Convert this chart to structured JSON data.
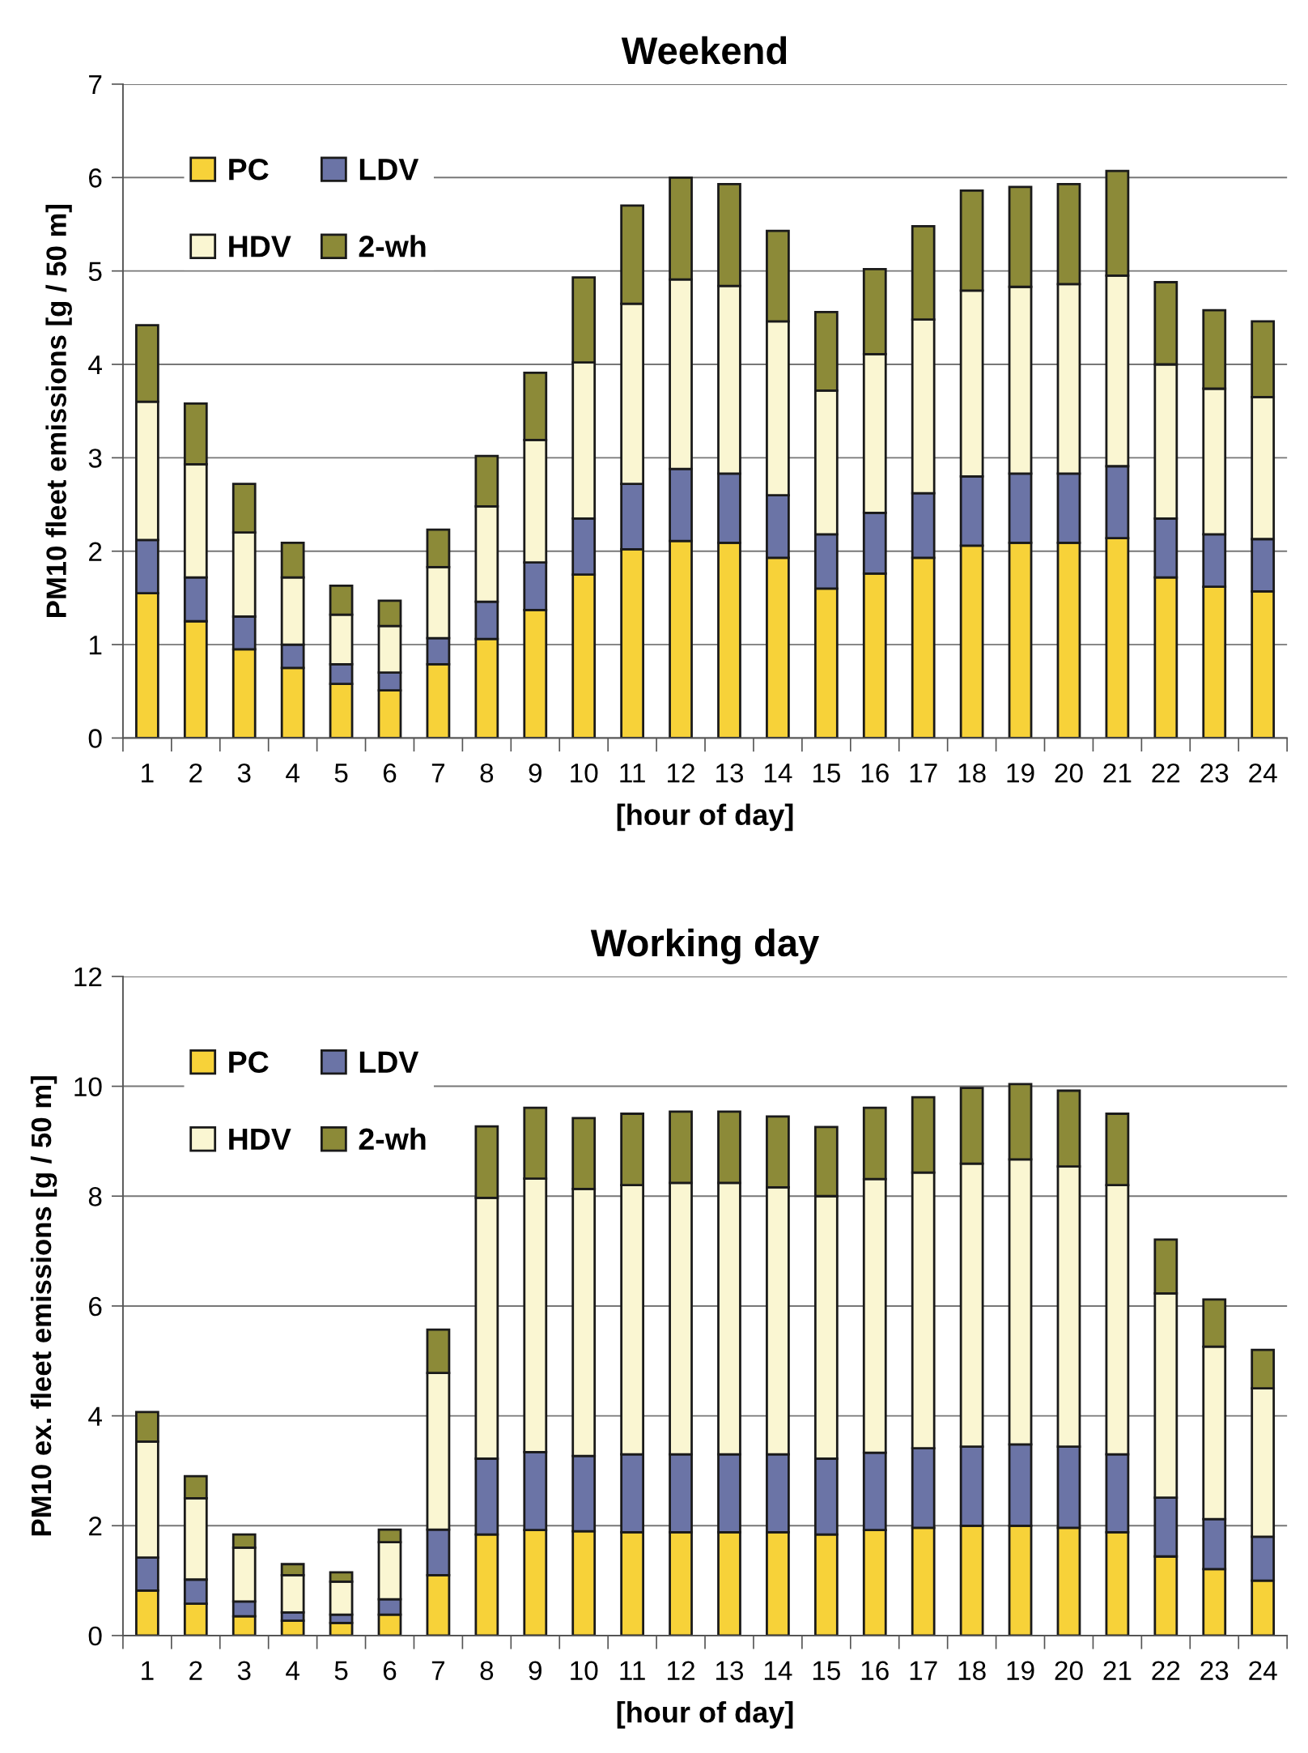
{
  "chart_data": [
    {
      "type": "bar",
      "title": "Weekend",
      "xlabel": "[hour of day]",
      "ylabel": "PM10 fleet emissions [g / 50 m]",
      "categories": [
        "1",
        "2",
        "3",
        "4",
        "5",
        "6",
        "7",
        "8",
        "9",
        "10",
        "11",
        "12",
        "13",
        "14",
        "15",
        "16",
        "17",
        "18",
        "19",
        "20",
        "21",
        "22",
        "23",
        "24"
      ],
      "stacked": true,
      "ylim": [
        0,
        7
      ],
      "yticks": [
        0,
        1,
        2,
        3,
        4,
        5,
        6,
        7
      ],
      "grid": "y",
      "legend": "top left",
      "series": [
        {
          "name": "PC",
          "color": "#f7d239",
          "values": [
            1.55,
            1.25,
            0.95,
            0.75,
            0.58,
            0.51,
            0.79,
            1.06,
            1.37,
            1.75,
            2.02,
            2.11,
            2.09,
            1.93,
            1.6,
            1.76,
            1.93,
            2.06,
            2.09,
            2.09,
            2.14,
            1.72,
            1.62,
            1.57
          ]
        },
        {
          "name": "LDV",
          "color": "#6b74a6",
          "values": [
            0.57,
            0.47,
            0.35,
            0.25,
            0.21,
            0.19,
            0.28,
            0.4,
            0.51,
            0.6,
            0.7,
            0.77,
            0.74,
            0.67,
            0.58,
            0.65,
            0.69,
            0.74,
            0.74,
            0.74,
            0.77,
            0.63,
            0.56,
            0.56
          ]
        },
        {
          "name": "HDV",
          "color": "#faf6d2",
          "values": [
            1.48,
            1.21,
            0.9,
            0.72,
            0.53,
            0.5,
            0.76,
            1.02,
            1.31,
            1.67,
            1.93,
            2.03,
            2.01,
            1.86,
            1.54,
            1.7,
            1.86,
            1.99,
            2.0,
            2.03,
            2.04,
            1.65,
            1.56,
            1.52
          ]
        },
        {
          "name": "2-wh",
          "color": "#8c8a38",
          "values": [
            0.82,
            0.65,
            0.52,
            0.37,
            0.31,
            0.27,
            0.4,
            0.54,
            0.72,
            0.91,
            1.05,
            1.09,
            1.09,
            0.97,
            0.84,
            0.91,
            1.0,
            1.07,
            1.07,
            1.07,
            1.12,
            0.88,
            0.84,
            0.81
          ]
        }
      ]
    },
    {
      "type": "bar",
      "title": "Working day",
      "xlabel": "[hour of day]",
      "ylabel": "PM10 ex. fleet emissions [g / 50 m]",
      "categories": [
        "1",
        "2",
        "3",
        "4",
        "5",
        "6",
        "7",
        "8",
        "9",
        "10",
        "11",
        "12",
        "13",
        "14",
        "15",
        "16",
        "17",
        "18",
        "19",
        "20",
        "21",
        "22",
        "23",
        "24"
      ],
      "stacked": true,
      "ylim": [
        0,
        12
      ],
      "yticks": [
        0,
        2,
        4,
        6,
        8,
        10,
        12
      ],
      "grid": "y",
      "legend": "top left",
      "series": [
        {
          "name": "PC",
          "color": "#f7d239",
          "values": [
            0.82,
            0.58,
            0.35,
            0.27,
            0.23,
            0.38,
            1.1,
            1.84,
            1.92,
            1.9,
            1.88,
            1.88,
            1.88,
            1.88,
            1.84,
            1.92,
            1.96,
            2.0,
            2.0,
            1.96,
            1.88,
            1.44,
            1.21,
            1.0
          ]
        },
        {
          "name": "LDV",
          "color": "#6b74a6",
          "values": [
            0.6,
            0.44,
            0.27,
            0.15,
            0.15,
            0.28,
            0.83,
            1.38,
            1.42,
            1.37,
            1.42,
            1.42,
            1.42,
            1.42,
            1.38,
            1.41,
            1.45,
            1.44,
            1.48,
            1.48,
            1.42,
            1.07,
            0.91,
            0.8
          ]
        },
        {
          "name": "HDV",
          "color": "#faf6d2",
          "values": [
            2.11,
            1.48,
            0.98,
            0.68,
            0.6,
            1.04,
            2.85,
            4.75,
            4.98,
            4.86,
            4.9,
            4.94,
            4.94,
            4.86,
            4.78,
            4.98,
            5.02,
            5.15,
            5.19,
            5.1,
            4.9,
            3.72,
            3.14,
            2.7
          ]
        },
        {
          "name": "2-wh",
          "color": "#8c8a38",
          "values": [
            0.54,
            0.4,
            0.24,
            0.2,
            0.17,
            0.23,
            0.79,
            1.3,
            1.29,
            1.29,
            1.3,
            1.3,
            1.3,
            1.29,
            1.26,
            1.3,
            1.37,
            1.38,
            1.37,
            1.38,
            1.3,
            0.98,
            0.86,
            0.7
          ]
        }
      ]
    }
  ]
}
